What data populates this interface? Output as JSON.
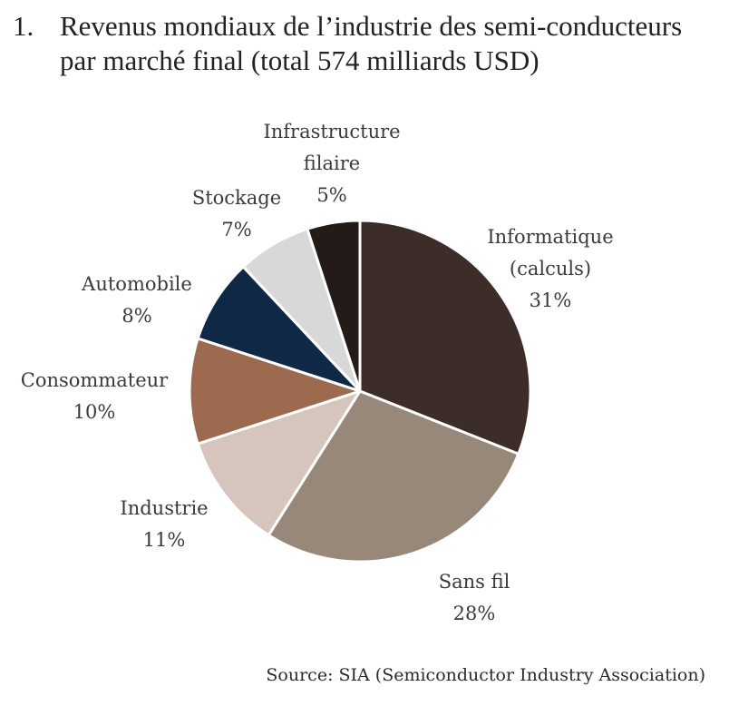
{
  "title": {
    "number": "1.",
    "line1": "Revenus mondiaux de l’industrie des semi-conducteurs",
    "line2": "par marché final (total 574 milliards USD)"
  },
  "source": "Source: SIA (Semiconductor Industry Association)",
  "chart_data": {
    "type": "pie",
    "title": "Revenus mondiaux de l’industrie des semi-conducteurs par marché final (total 574 milliards USD)",
    "start": "12 o'clock",
    "direction": "clockwise",
    "slices": [
      {
        "label_lines": [
          "Informatique",
          "(calculs)"
        ],
        "value": 31,
        "value_label": "31%",
        "color": "#3d2d29"
      },
      {
        "label_lines": [
          "Sans fil"
        ],
        "value": 28,
        "value_label": "28%",
        "color": "#978879"
      },
      {
        "label_lines": [
          "Industrie"
        ],
        "value": 11,
        "value_label": "11%",
        "color": "#d5c5bc"
      },
      {
        "label_lines": [
          "Consommateur"
        ],
        "value": 10,
        "value_label": "10%",
        "color": "#9c6a4f"
      },
      {
        "label_lines": [
          "Automobile"
        ],
        "value": 8,
        "value_label": "8%",
        "color": "#0e2845"
      },
      {
        "label_lines": [
          "Stockage"
        ],
        "value": 7,
        "value_label": "7%",
        "color": "#d8d8d8"
      },
      {
        "label_lines": [
          "Infrastructure",
          "filaire"
        ],
        "value": 5,
        "value_label": "5%",
        "color": "#241a18"
      }
    ]
  }
}
